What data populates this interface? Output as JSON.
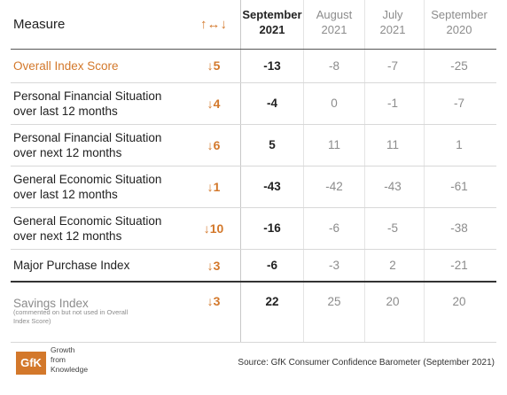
{
  "header": {
    "measure": "Measure",
    "change": "↑↔↓",
    "columns": [
      [
        "September",
        "2021"
      ],
      [
        "August",
        "2021"
      ],
      [
        "July",
        "2021"
      ],
      [
        "September",
        "2020"
      ]
    ]
  },
  "rows": [
    {
      "measure": [
        "Overall Index Score"
      ],
      "change": "↓5",
      "values": [
        -13,
        -8,
        -7,
        -25
      ]
    },
    {
      "measure": [
        "Personal Financial Situation",
        "over last 12 months"
      ],
      "change": "↓4",
      "values": [
        -4,
        0,
        -1,
        -7
      ]
    },
    {
      "measure": [
        "Personal Financial Situation",
        "over next 12 months"
      ],
      "change": "↓6",
      "values": [
        5,
        11,
        11,
        1
      ]
    },
    {
      "measure": [
        "General Economic Situation",
        "over last 12 months"
      ],
      "change": "↓1",
      "values": [
        -43,
        -42,
        -43,
        -61
      ]
    },
    {
      "measure": [
        "General Economic Situation",
        "over next 12 months"
      ],
      "change": "↓10",
      "values": [
        -16,
        -6,
        -5,
        -38
      ]
    },
    {
      "measure": [
        "Major Purchase Index"
      ],
      "change": "↓3",
      "values": [
        -6,
        -3,
        2,
        -21
      ]
    },
    {
      "measure": [
        "Savings Index"
      ],
      "note": [
        "(commented on but not used in Overall",
        "Index Score)"
      ],
      "change": "↓3",
      "values": [
        22,
        25,
        20,
        20
      ]
    }
  ],
  "footer": {
    "logo": "GfK",
    "tagline": [
      "Growth",
      "from",
      "Knowledge"
    ],
    "source": "Source: GfK Consumer Confidence Barometer (September 2021)"
  }
}
